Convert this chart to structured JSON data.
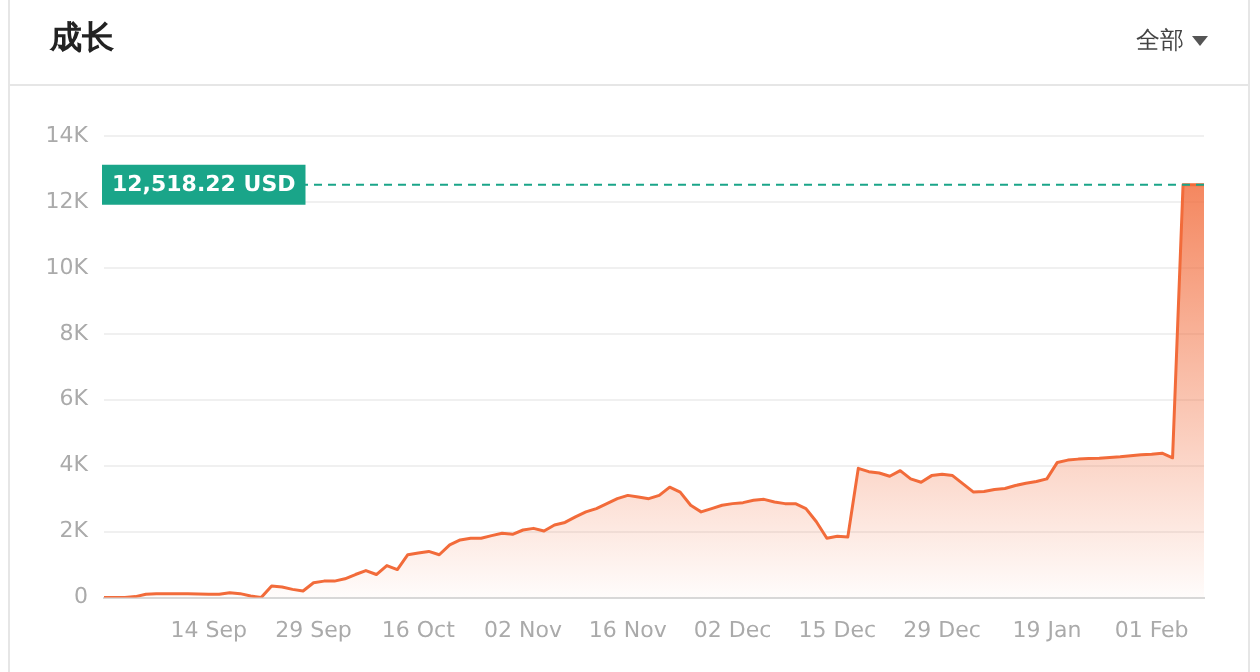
{
  "chart_data": {
    "type": "area",
    "title": "成长",
    "annotations": [
      "全部"
    ],
    "categories": [
      null,
      null,
      null,
      null,
      null,
      null,
      null,
      null,
      null,
      null,
      "14 Sep",
      null,
      null,
      null,
      null,
      null,
      null,
      null,
      null,
      null,
      "29 Sep",
      null,
      null,
      null,
      null,
      null,
      null,
      null,
      null,
      null,
      "16 Oct",
      null,
      null,
      null,
      null,
      null,
      null,
      null,
      null,
      null,
      "02 Nov",
      null,
      null,
      null,
      null,
      null,
      null,
      null,
      null,
      null,
      "16 Nov",
      null,
      null,
      null,
      null,
      null,
      null,
      null,
      null,
      null,
      "02 Dec",
      null,
      null,
      null,
      null,
      null,
      null,
      null,
      null,
      null,
      "15 Dec",
      null,
      null,
      null,
      null,
      null,
      null,
      null,
      null,
      null,
      "29 Dec",
      null,
      null,
      null,
      null,
      null,
      null,
      null,
      null,
      null,
      "19 Jan",
      null,
      null,
      null,
      null,
      null,
      null,
      null,
      null,
      null,
      "01 Feb",
      null,
      null,
      null,
      null,
      null
    ],
    "series": [
      {
        "color": "#f26b3a",
        "values": [
          0,
          0,
          0,
          30,
          100,
          120,
          120,
          120,
          120,
          110,
          100,
          100,
          150,
          120,
          50,
          0,
          350,
          320,
          250,
          200,
          450,
          500,
          500,
          570,
          700,
          820,
          700,
          970,
          850,
          1300,
          1350,
          1400,
          1300,
          1600,
          1750,
          1800,
          1800,
          1880,
          1950,
          1920,
          2050,
          2100,
          2020,
          2200,
          2280,
          2450,
          2600,
          2700,
          2850,
          3000,
          3100,
          3050,
          3000,
          3100,
          3350,
          3200,
          2800,
          2600,
          2700,
          2800,
          2850,
          2880,
          2950,
          2980,
          2900,
          2850,
          2850,
          2700,
          2300,
          1800,
          1860,
          1840,
          3920,
          3820,
          3780,
          3680,
          3850,
          3600,
          3500,
          3700,
          3740,
          3700,
          3450,
          3200,
          3220,
          3280,
          3310,
          3400,
          3470,
          3520,
          3600,
          4100,
          4170,
          4200,
          4220,
          4230,
          4250,
          4270,
          4300,
          4330,
          4350,
          4380,
          4240,
          12518.22,
          12518.22,
          12518.22
        ]
      }
    ],
    "ylim": [
      0,
      14000
    ],
    "yticks": [
      0,
      {
        "value": 2000,
        "label": "2K"
      },
      {
        "value": 4000,
        "label": "4K"
      },
      {
        "value": 6000,
        "label": "6K"
      },
      {
        "value": 8000,
        "label": "8K"
      },
      {
        "value": 10000,
        "label": "10K"
      },
      {
        "value": 12000,
        "label": "12K"
      },
      {
        "value": 14000,
        "label": "14K"
      }
    ],
    "grid": "y",
    "ref_lines": [
      {
        "axis": "y",
        "value": 12518.22,
        "label": "12,518.22 USD",
        "color": "#1aa589",
        "line_style": "dashed"
      }
    ]
  }
}
